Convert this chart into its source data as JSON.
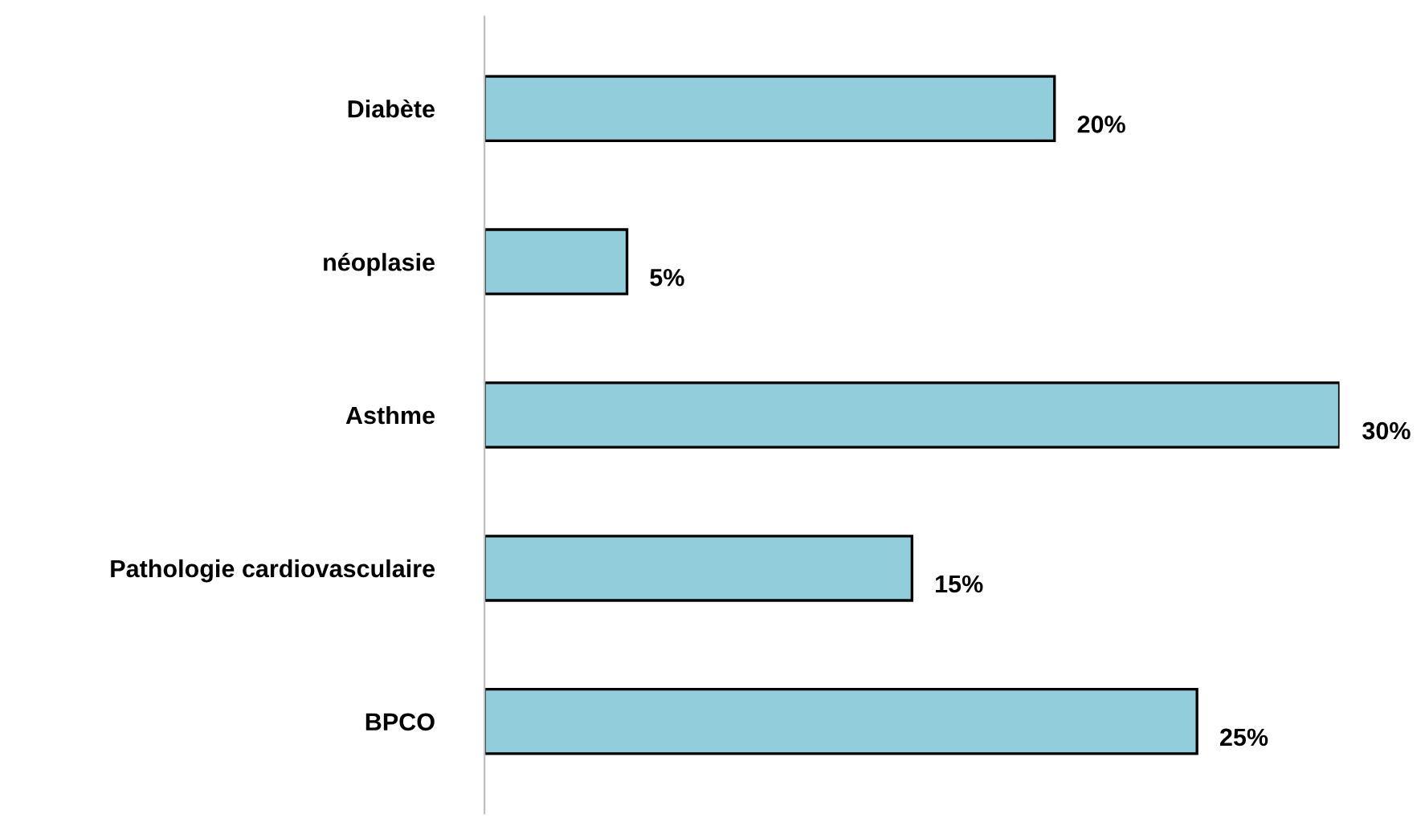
{
  "chart_data": {
    "type": "bar",
    "orientation": "horizontal",
    "categories": [
      "Diabète",
      "néoplasie",
      "Asthme",
      "Pathologie cardiovasculaire",
      "BPCO"
    ],
    "values": [
      20,
      5,
      30,
      15,
      25
    ],
    "value_labels": [
      "20%",
      "5%",
      "30%",
      "15%",
      "25%"
    ],
    "color": "#92cddc",
    "grid": false,
    "legend": false
  }
}
